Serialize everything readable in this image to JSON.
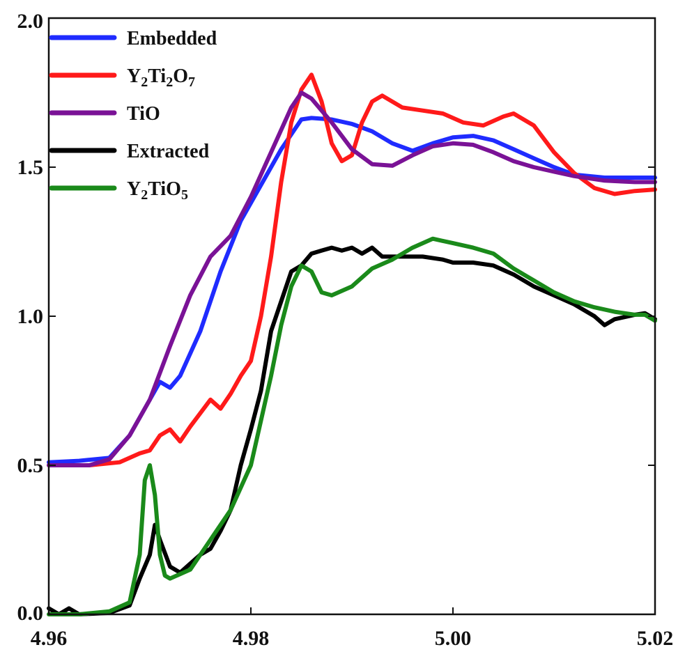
{
  "chart_data": {
    "type": "line",
    "title": "",
    "xlabel": "",
    "ylabel": "",
    "xlim": [
      4.96,
      5.02
    ],
    "ylim": [
      0.0,
      2.0
    ],
    "x_ticks": [
      "4.96",
      "4.98",
      "5.00",
      "5.02"
    ],
    "x_tick_values": [
      4.96,
      4.98,
      5.0,
      5.02
    ],
    "y_ticks": [
      "0.0",
      "0.5",
      "1.0",
      "1.5",
      "2.0"
    ],
    "y_tick_values": [
      0.0,
      0.5,
      1.0,
      1.5,
      2.0
    ],
    "grid": false,
    "legend_position": "top-left",
    "series": [
      {
        "name": "Embedded",
        "legend_label": {
          "base": "Embedded",
          "parts": []
        },
        "color": "#1f2bff",
        "points": [
          [
            4.96,
            0.51
          ],
          [
            4.963,
            0.515
          ],
          [
            4.966,
            0.525
          ],
          [
            4.968,
            0.6
          ],
          [
            4.97,
            0.72
          ],
          [
            4.971,
            0.78
          ],
          [
            4.972,
            0.76
          ],
          [
            4.973,
            0.8
          ],
          [
            4.975,
            0.95
          ],
          [
            4.977,
            1.15
          ],
          [
            4.979,
            1.32
          ],
          [
            4.981,
            1.44
          ],
          [
            4.983,
            1.56
          ],
          [
            4.985,
            1.66
          ],
          [
            4.986,
            1.665
          ],
          [
            4.988,
            1.66
          ],
          [
            4.99,
            1.645
          ],
          [
            4.992,
            1.62
          ],
          [
            4.994,
            1.58
          ],
          [
            4.996,
            1.555
          ],
          [
            4.998,
            1.58
          ],
          [
            5.0,
            1.6
          ],
          [
            5.002,
            1.605
          ],
          [
            5.004,
            1.59
          ],
          [
            5.006,
            1.56
          ],
          [
            5.008,
            1.53
          ],
          [
            5.01,
            1.5
          ],
          [
            5.012,
            1.475
          ],
          [
            5.015,
            1.465
          ],
          [
            5.018,
            1.465
          ],
          [
            5.02,
            1.465
          ]
        ]
      },
      {
        "name": "Y2Ti2O7",
        "legend_label": {
          "base": "",
          "parts": [
            {
              "t": "Y",
              "sub": false
            },
            {
              "t": "2",
              "sub": true
            },
            {
              "t": "Ti",
              "sub": false
            },
            {
              "t": "2",
              "sub": true
            },
            {
              "t": "O",
              "sub": false
            },
            {
              "t": "7",
              "sub": true
            }
          ]
        },
        "color": "#ff1a1a",
        "points": [
          [
            4.96,
            0.5
          ],
          [
            4.964,
            0.5
          ],
          [
            4.967,
            0.51
          ],
          [
            4.969,
            0.54
          ],
          [
            4.97,
            0.55
          ],
          [
            4.971,
            0.6
          ],
          [
            4.972,
            0.62
          ],
          [
            4.973,
            0.58
          ],
          [
            4.974,
            0.63
          ],
          [
            4.976,
            0.72
          ],
          [
            4.977,
            0.69
          ],
          [
            4.978,
            0.74
          ],
          [
            4.979,
            0.8
          ],
          [
            4.98,
            0.85
          ],
          [
            4.981,
            1.0
          ],
          [
            4.982,
            1.2
          ],
          [
            4.983,
            1.45
          ],
          [
            4.984,
            1.65
          ],
          [
            4.985,
            1.76
          ],
          [
            4.986,
            1.81
          ],
          [
            4.987,
            1.72
          ],
          [
            4.988,
            1.58
          ],
          [
            4.989,
            1.52
          ],
          [
            4.99,
            1.54
          ],
          [
            4.991,
            1.65
          ],
          [
            4.992,
            1.72
          ],
          [
            4.993,
            1.74
          ],
          [
            4.995,
            1.7
          ],
          [
            4.997,
            1.69
          ],
          [
            4.999,
            1.68
          ],
          [
            5.001,
            1.65
          ],
          [
            5.003,
            1.64
          ],
          [
            5.005,
            1.67
          ],
          [
            5.006,
            1.68
          ],
          [
            5.008,
            1.64
          ],
          [
            5.01,
            1.55
          ],
          [
            5.012,
            1.48
          ],
          [
            5.014,
            1.43
          ],
          [
            5.016,
            1.41
          ],
          [
            5.018,
            1.42
          ],
          [
            5.02,
            1.425
          ]
        ]
      },
      {
        "name": "TiO",
        "legend_label": {
          "base": "TiO",
          "parts": []
        },
        "color": "#7a1296",
        "points": [
          [
            4.96,
            0.5
          ],
          [
            4.964,
            0.5
          ],
          [
            4.966,
            0.52
          ],
          [
            4.968,
            0.6
          ],
          [
            4.97,
            0.72
          ],
          [
            4.972,
            0.9
          ],
          [
            4.974,
            1.07
          ],
          [
            4.976,
            1.2
          ],
          [
            4.978,
            1.27
          ],
          [
            4.98,
            1.4
          ],
          [
            4.982,
            1.55
          ],
          [
            4.984,
            1.7
          ],
          [
            4.985,
            1.75
          ],
          [
            4.986,
            1.73
          ],
          [
            4.988,
            1.65
          ],
          [
            4.99,
            1.56
          ],
          [
            4.992,
            1.51
          ],
          [
            4.994,
            1.505
          ],
          [
            4.996,
            1.54
          ],
          [
            4.998,
            1.57
          ],
          [
            5.0,
            1.58
          ],
          [
            5.002,
            1.575
          ],
          [
            5.004,
            1.55
          ],
          [
            5.006,
            1.52
          ],
          [
            5.008,
            1.5
          ],
          [
            5.01,
            1.485
          ],
          [
            5.012,
            1.47
          ],
          [
            5.015,
            1.455
          ],
          [
            5.018,
            1.45
          ],
          [
            5.02,
            1.45
          ]
        ]
      },
      {
        "name": "Extracted",
        "legend_label": {
          "base": "Extracted",
          "parts": []
        },
        "color": "#000000",
        "points": [
          [
            4.96,
            0.02
          ],
          [
            4.961,
            0.0
          ],
          [
            4.962,
            0.02
          ],
          [
            4.963,
            0.0
          ],
          [
            4.966,
            0.005
          ],
          [
            4.968,
            0.03
          ],
          [
            4.969,
            0.12
          ],
          [
            4.97,
            0.2
          ],
          [
            4.9705,
            0.3
          ],
          [
            4.971,
            0.25
          ],
          [
            4.972,
            0.16
          ],
          [
            4.973,
            0.14
          ],
          [
            4.975,
            0.2
          ],
          [
            4.976,
            0.22
          ],
          [
            4.977,
            0.28
          ],
          [
            4.978,
            0.35
          ],
          [
            4.979,
            0.5
          ],
          [
            4.98,
            0.62
          ],
          [
            4.981,
            0.75
          ],
          [
            4.982,
            0.95
          ],
          [
            4.983,
            1.05
          ],
          [
            4.984,
            1.15
          ],
          [
            4.985,
            1.17
          ],
          [
            4.986,
            1.21
          ],
          [
            4.987,
            1.22
          ],
          [
            4.988,
            1.23
          ],
          [
            4.989,
            1.22
          ],
          [
            4.99,
            1.23
          ],
          [
            4.991,
            1.21
          ],
          [
            4.992,
            1.23
          ],
          [
            4.993,
            1.2
          ],
          [
            4.995,
            1.2
          ],
          [
            4.997,
            1.2
          ],
          [
            4.999,
            1.19
          ],
          [
            5.0,
            1.18
          ],
          [
            5.002,
            1.18
          ],
          [
            5.004,
            1.17
          ],
          [
            5.006,
            1.14
          ],
          [
            5.008,
            1.1
          ],
          [
            5.01,
            1.07
          ],
          [
            5.012,
            1.04
          ],
          [
            5.014,
            1.0
          ],
          [
            5.015,
            0.97
          ],
          [
            5.016,
            0.99
          ],
          [
            5.018,
            1.005
          ],
          [
            5.019,
            1.01
          ],
          [
            5.02,
            0.99
          ]
        ]
      },
      {
        "name": "Y2TiO5",
        "legend_label": {
          "base": "",
          "parts": [
            {
              "t": "Y",
              "sub": false
            },
            {
              "t": "2",
              "sub": true
            },
            {
              "t": "TiO",
              "sub": false
            },
            {
              "t": "5",
              "sub": true
            }
          ]
        },
        "color": "#1a8a1a",
        "points": [
          [
            4.96,
            0.0
          ],
          [
            4.963,
            0.0
          ],
          [
            4.966,
            0.01
          ],
          [
            4.968,
            0.04
          ],
          [
            4.969,
            0.2
          ],
          [
            4.9695,
            0.45
          ],
          [
            4.97,
            0.5
          ],
          [
            4.9705,
            0.4
          ],
          [
            4.971,
            0.2
          ],
          [
            4.9715,
            0.13
          ],
          [
            4.972,
            0.12
          ],
          [
            4.974,
            0.15
          ],
          [
            4.976,
            0.25
          ],
          [
            4.978,
            0.35
          ],
          [
            4.98,
            0.5
          ],
          [
            4.982,
            0.8
          ],
          [
            4.983,
            0.97
          ],
          [
            4.984,
            1.1
          ],
          [
            4.985,
            1.17
          ],
          [
            4.986,
            1.15
          ],
          [
            4.987,
            1.08
          ],
          [
            4.988,
            1.07
          ],
          [
            4.99,
            1.1
          ],
          [
            4.992,
            1.16
          ],
          [
            4.994,
            1.19
          ],
          [
            4.996,
            1.23
          ],
          [
            4.998,
            1.26
          ],
          [
            5.0,
            1.245
          ],
          [
            5.002,
            1.23
          ],
          [
            5.004,
            1.21
          ],
          [
            5.006,
            1.16
          ],
          [
            5.008,
            1.12
          ],
          [
            5.01,
            1.08
          ],
          [
            5.012,
            1.05
          ],
          [
            5.014,
            1.03
          ],
          [
            5.016,
            1.015
          ],
          [
            5.018,
            1.005
          ],
          [
            5.019,
            1.005
          ],
          [
            5.02,
            0.985
          ]
        ]
      }
    ]
  }
}
